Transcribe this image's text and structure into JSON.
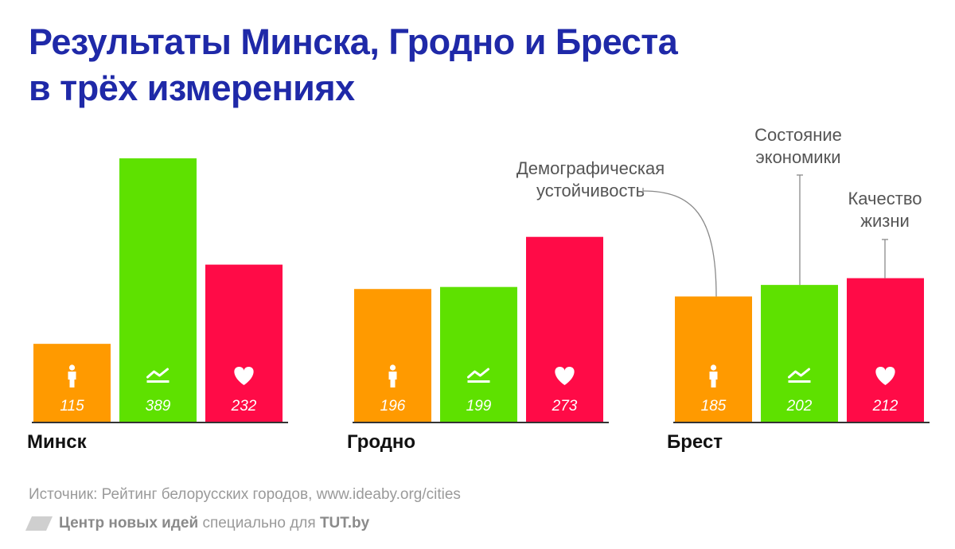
{
  "title": {
    "line1": "Результаты Минска, Гродно и Бреста",
    "line2": "в трёх измерениях"
  },
  "colors": {
    "demography": "#ff9a00",
    "economy": "#5ee100",
    "quality": "#ff0b47",
    "title": "#1f29a8"
  },
  "chart_data": {
    "type": "bar",
    "title": "Результаты Минска, Гродно и Бреста в трёх измерениях",
    "xlabel": "",
    "ylabel": "",
    "ylim": [
      0,
      400
    ],
    "series": [
      {
        "name": "Демографическая устойчивость",
        "key": "demography",
        "icon": "person-icon"
      },
      {
        "name": "Состояние экономики",
        "key": "economy",
        "icon": "chart-trend-icon"
      },
      {
        "name": "Качество жизни",
        "key": "quality",
        "icon": "heart-icon"
      }
    ],
    "groups": [
      {
        "city": "Минск",
        "values": [
          115,
          389,
          232
        ]
      },
      {
        "city": "Гродно",
        "values": [
          196,
          199,
          273
        ]
      },
      {
        "city": "Брест",
        "values": [
          185,
          202,
          212
        ]
      }
    ],
    "annotations": {
      "demography": [
        "Демографическая",
        "устойчивость"
      ],
      "economy": [
        "Состояние",
        "экономики"
      ],
      "quality": [
        "Качество",
        "жизни"
      ]
    }
  },
  "footer": {
    "source": "Источник: Рейтинг белорусских городов, www.ideaby.org/cities",
    "org": "Центр новых идей",
    "middle": " специально для ",
    "site": "TUT.by"
  }
}
